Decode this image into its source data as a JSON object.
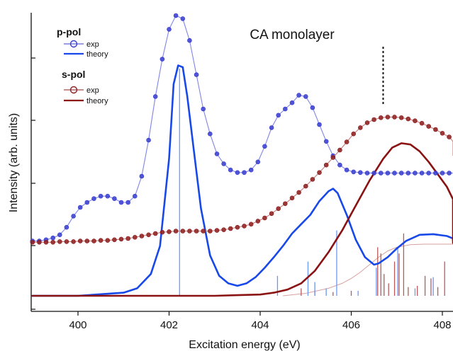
{
  "chart_data": {
    "type": "line",
    "title": "CA monolayer",
    "xlabel": "Excitation energy (eV)",
    "ylabel": "Intensity (arb. units)",
    "xlim": [
      399.0,
      409.0
    ],
    "ylim": [
      -0.2,
      4.6
    ],
    "x_ticks": [
      400,
      402,
      404,
      406,
      408
    ],
    "y_ticks": [
      0.0,
      1.0,
      2.0,
      3.0,
      4.0
    ],
    "grid": false,
    "legend_position": "top-left",
    "legend": {
      "groups": [
        {
          "heading": "p-pol",
          "entries": [
            {
              "label": "exp",
              "style": "markers-line"
            },
            {
              "label": "theory",
              "style": "line"
            }
          ]
        },
        {
          "heading": "s-pol",
          "entries": [
            {
              "label": "exp",
              "style": "markers-line"
            },
            {
              "label": "theory",
              "style": "line"
            }
          ]
        }
      ]
    },
    "colors": {
      "p_exp": "#3a3ed0",
      "p_exp_line": "#7f85e8",
      "p_theory": "#1848e8",
      "s_exp": "#8e1f1f",
      "s_exp_line": "#c47a7a",
      "s_theory": "#8a1212",
      "p_stick": "#6b98f0",
      "s_stick": "#b85a5a",
      "s_step": "#d8a0a0"
    },
    "marker_line_x": 406.7,
    "marker_line_y_range": [
      3.06,
      4.0
    ],
    "series": [
      {
        "id": "p_exp",
        "group": "p-pol",
        "label": "exp",
        "kind": "markers",
        "x": [
          399.0,
          399.15,
          399.3,
          399.45,
          399.6,
          399.75,
          399.9,
          400.05,
          400.2,
          400.35,
          400.5,
          400.65,
          400.8,
          400.95,
          401.1,
          401.25,
          401.4,
          401.55,
          401.7,
          401.85,
          402.0,
          402.15,
          402.3,
          402.45,
          402.6,
          402.75,
          402.9,
          403.05,
          403.2,
          403.35,
          403.5,
          403.65,
          403.8,
          403.95,
          404.1,
          404.25,
          404.4,
          404.55,
          404.7,
          404.85,
          405.0,
          405.15,
          405.3,
          405.45,
          405.6,
          405.75,
          405.9,
          406.05,
          406.2,
          406.35,
          406.5,
          406.65,
          406.8,
          406.95,
          407.1,
          407.25,
          407.4,
          407.55,
          407.7,
          407.85,
          408.0,
          408.15,
          408.3,
          408.45,
          408.6,
          408.75,
          408.9
        ],
        "y": [
          0.88,
          0.88,
          0.9,
          0.93,
          0.98,
          1.1,
          1.28,
          1.42,
          1.5,
          1.56,
          1.6,
          1.6,
          1.56,
          1.5,
          1.5,
          1.6,
          1.92,
          2.5,
          3.2,
          3.8,
          4.28,
          4.5,
          4.45,
          4.1,
          3.55,
          3.0,
          2.6,
          2.28,
          2.12,
          2.02,
          1.98,
          1.98,
          2.02,
          2.15,
          2.4,
          2.7,
          2.9,
          3.0,
          3.1,
          3.22,
          3.2,
          3.02,
          2.75,
          2.48,
          2.25,
          2.1,
          2.02,
          1.99,
          1.98,
          1.97,
          1.97,
          1.97,
          1.97,
          1.97,
          1.97,
          1.97,
          1.97,
          1.97,
          1.97,
          1.97,
          1.97,
          1.97,
          1.97,
          1.97,
          1.97,
          1.97,
          1.97
        ]
      },
      {
        "id": "p_theory",
        "group": "p-pol",
        "label": "theory",
        "kind": "line",
        "x": [
          399.0,
          400.0,
          401.0,
          401.3,
          401.6,
          401.8,
          402.0,
          402.1,
          402.2,
          402.3,
          402.4,
          402.55,
          402.7,
          402.9,
          403.1,
          403.3,
          403.5,
          403.7,
          403.9,
          404.1,
          404.3,
          404.5,
          404.7,
          404.9,
          405.1,
          405.3,
          405.5,
          405.6,
          405.7,
          405.9,
          406.1,
          406.3,
          406.5,
          406.6,
          406.8,
          407.0,
          407.2,
          407.5,
          407.8,
          408.1,
          408.4,
          408.7,
          409.0
        ],
        "y": [
          0.0,
          0.0,
          0.05,
          0.12,
          0.35,
          0.8,
          2.2,
          3.4,
          3.7,
          3.67,
          3.2,
          2.3,
          1.4,
          0.65,
          0.32,
          0.2,
          0.16,
          0.2,
          0.3,
          0.45,
          0.62,
          0.8,
          1.0,
          1.15,
          1.3,
          1.52,
          1.68,
          1.72,
          1.65,
          1.3,
          0.9,
          0.62,
          0.5,
          0.52,
          0.62,
          0.76,
          0.88,
          0.98,
          0.99,
          0.96,
          0.92,
          0.9,
          0.89
        ]
      },
      {
        "id": "s_exp",
        "group": "s-pol",
        "label": "exp",
        "kind": "markers",
        "x": [
          399.0,
          399.15,
          399.3,
          399.45,
          399.6,
          399.75,
          399.9,
          400.05,
          400.2,
          400.35,
          400.5,
          400.65,
          400.8,
          400.95,
          401.1,
          401.25,
          401.4,
          401.55,
          401.7,
          401.85,
          402.0,
          402.15,
          402.3,
          402.45,
          402.6,
          402.75,
          402.9,
          403.05,
          403.2,
          403.35,
          403.5,
          403.65,
          403.8,
          403.95,
          404.1,
          404.25,
          404.4,
          404.55,
          404.7,
          404.85,
          405.0,
          405.15,
          405.3,
          405.45,
          405.6,
          405.75,
          405.9,
          406.05,
          406.2,
          406.35,
          406.5,
          406.65,
          406.8,
          406.95,
          407.1,
          407.25,
          407.4,
          407.55,
          407.7,
          407.85,
          408.0,
          408.15,
          408.3,
          408.45,
          408.6,
          408.75,
          408.9
        ],
        "y": [
          0.86,
          0.86,
          0.86,
          0.86,
          0.87,
          0.87,
          0.87,
          0.88,
          0.88,
          0.88,
          0.89,
          0.89,
          0.9,
          0.91,
          0.92,
          0.94,
          0.96,
          0.98,
          1.0,
          1.02,
          1.03,
          1.04,
          1.04,
          1.04,
          1.04,
          1.04,
          1.04,
          1.05,
          1.06,
          1.08,
          1.1,
          1.12,
          1.15,
          1.2,
          1.25,
          1.32,
          1.4,
          1.48,
          1.57,
          1.66,
          1.76,
          1.87,
          1.98,
          2.1,
          2.22,
          2.34,
          2.47,
          2.6,
          2.7,
          2.78,
          2.83,
          2.86,
          2.87,
          2.87,
          2.86,
          2.84,
          2.81,
          2.77,
          2.72,
          2.67,
          2.61,
          2.55,
          2.48,
          2.42,
          2.36,
          2.3,
          2.25
        ]
      },
      {
        "id": "s_theory",
        "group": "s-pol",
        "label": "theory",
        "kind": "line",
        "x": [
          399.0,
          400.0,
          401.0,
          402.0,
          403.0,
          403.5,
          404.0,
          404.3,
          404.6,
          404.9,
          405.2,
          405.5,
          405.8,
          406.1,
          406.4,
          406.7,
          406.9,
          407.1,
          407.3,
          407.5,
          407.7,
          407.9,
          408.1,
          408.3,
          408.5,
          408.7,
          409.0
        ],
        "y": [
          0.0,
          0.0,
          0.0,
          0.0,
          0.0,
          0.01,
          0.02,
          0.05,
          0.1,
          0.2,
          0.4,
          0.7,
          1.05,
          1.45,
          1.85,
          2.2,
          2.38,
          2.45,
          2.43,
          2.32,
          2.15,
          1.95,
          1.75,
          1.55,
          1.35,
          1.15,
          0.85
        ]
      }
    ],
    "s_step_curve": {
      "x": [
        404.5,
        405.0,
        405.5,
        405.8,
        406.0,
        406.2,
        406.4,
        406.6,
        406.8,
        407.0,
        407.3,
        407.6,
        408.0,
        408.5,
        409.0
      ],
      "y": [
        0.0,
        0.04,
        0.12,
        0.2,
        0.28,
        0.38,
        0.5,
        0.62,
        0.72,
        0.78,
        0.82,
        0.83,
        0.83,
        0.83,
        0.83
      ]
    },
    "sticks": {
      "p": [
        {
          "x": 402.23,
          "h": 3.65
        },
        {
          "x": 404.38,
          "h": 0.32
        },
        {
          "x": 405.05,
          "h": 0.55
        },
        {
          "x": 405.2,
          "h": 0.22
        },
        {
          "x": 405.45,
          "h": 0.12
        },
        {
          "x": 405.68,
          "h": 1.05
        },
        {
          "x": 406.15,
          "h": 0.08
        },
        {
          "x": 406.55,
          "h": 0.45
        },
        {
          "x": 407.02,
          "h": 0.78
        },
        {
          "x": 407.4,
          "h": 0.12
        },
        {
          "x": 407.8,
          "h": 0.3
        },
        {
          "x": 408.5,
          "h": 0.25
        },
        {
          "x": 408.75,
          "h": 0.1
        }
      ],
      "s": [
        {
          "x": 404.9,
          "h": 0.12
        },
        {
          "x": 405.2,
          "h": 0.08
        },
        {
          "x": 405.6,
          "h": 0.06
        },
        {
          "x": 406.0,
          "h": 0.08
        },
        {
          "x": 406.58,
          "h": 0.78
        },
        {
          "x": 406.65,
          "h": 0.68
        },
        {
          "x": 406.72,
          "h": 0.35
        },
        {
          "x": 406.82,
          "h": 0.2
        },
        {
          "x": 406.95,
          "h": 0.55
        },
        {
          "x": 407.05,
          "h": 0.68
        },
        {
          "x": 407.15,
          "h": 1.0
        },
        {
          "x": 407.25,
          "h": 0.14
        },
        {
          "x": 407.45,
          "h": 0.16
        },
        {
          "x": 407.62,
          "h": 0.32
        },
        {
          "x": 407.75,
          "h": 0.28
        },
        {
          "x": 407.9,
          "h": 0.14
        },
        {
          "x": 408.05,
          "h": 0.55
        },
        {
          "x": 408.3,
          "h": 0.2
        },
        {
          "x": 408.55,
          "h": 0.12
        },
        {
          "x": 408.85,
          "h": 0.22
        }
      ]
    }
  }
}
